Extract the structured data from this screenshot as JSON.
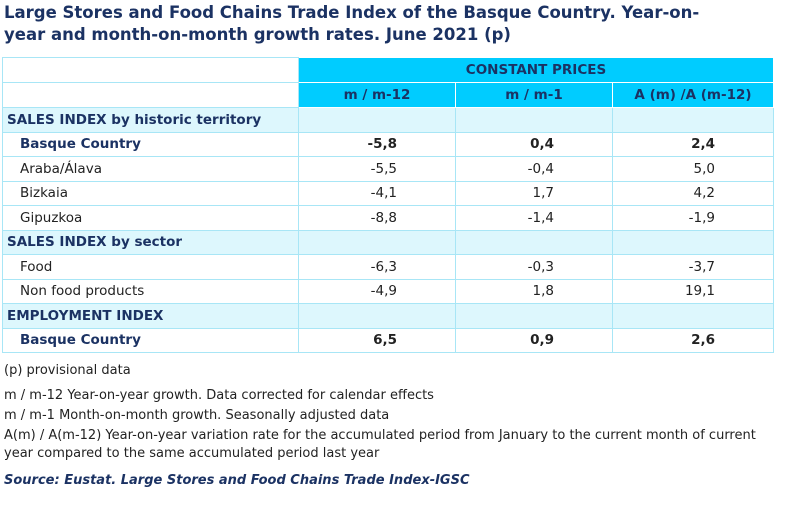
{
  "title": "Large Stores and Food Chains Trade Index of the Basque Country. Year-on-year and month-on-month growth rates. June 2021 (p)",
  "table": {
    "group_header": "CONSTANT PRICES",
    "columns": [
      "m / m-12",
      "m / m-1",
      "A (m) /A (m-12)"
    ],
    "sections": [
      {
        "heading": "SALES INDEX by historic territory",
        "rows": [
          {
            "label": "Basque Country",
            "values": [
              "-5,8",
              "0,4",
              "2,4"
            ],
            "bold": true
          },
          {
            "label": "Araba/Álava",
            "values": [
              "-5,5",
              "-0,4",
              "5,0"
            ]
          },
          {
            "label": "Bizkaia",
            "values": [
              "-4,1",
              "1,7",
              "4,2"
            ]
          },
          {
            "label": "Gipuzkoa",
            "values": [
              "-8,8",
              "-1,4",
              "-1,9"
            ]
          }
        ]
      },
      {
        "heading": "SALES INDEX by sector",
        "rows": [
          {
            "label": "Food",
            "values": [
              "-6,3",
              "-0,3",
              "-3,7"
            ]
          },
          {
            "label": "Non food products",
            "values": [
              "-4,9",
              "1,8",
              "19,1"
            ]
          }
        ]
      },
      {
        "heading": "EMPLOYMENT INDEX",
        "rows": [
          {
            "label": "Basque Country",
            "values": [
              "6,5",
              "0,9",
              "2,6"
            ],
            "bold": true
          }
        ]
      }
    ]
  },
  "notes": [
    "(p) provisional data",
    "m / m-12 Year-on-year growth. Data corrected for calendar effects",
    "m / m-1 Month-on-month growth. Seasonally adjusted data",
    "A(m) / A(m-12) Year-on-year variation rate for the accumulated period from January to the current month of current year compared to the same accumulated period last year"
  ],
  "source": "Source: Eustat. Large Stores and Food Chains Trade Index-IGSC"
}
